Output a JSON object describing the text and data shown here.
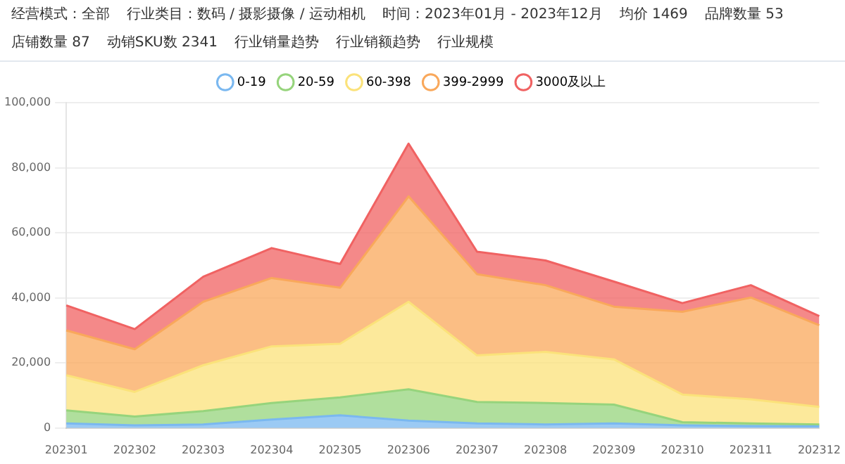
{
  "chart_data": {
    "type": "area",
    "stacked": true,
    "annotations": [
      "经营模式：全部",
      "行业类目：数码 / 摄影摄像 / 运动相机",
      "时间：2023年01月 - 2023年12月",
      "均价 1469",
      "品牌数量 53",
      "店铺数量 87",
      "动销SKU数 2341",
      "行业销量趋势",
      "行业销额趋势",
      "行业规模"
    ],
    "categories": [
      "202301",
      "202302",
      "202303",
      "202304",
      "202305",
      "202306",
      "202307",
      "202308",
      "202309",
      "202310",
      "202311",
      "202312"
    ],
    "series": [
      {
        "name": "0-19",
        "color": "#7ab8f0",
        "values": [
          1400,
          800,
          1100,
          2600,
          3900,
          2300,
          1400,
          1100,
          1400,
          800,
          600,
          500
        ]
      },
      {
        "name": "20-59",
        "color": "#96d47c",
        "values": [
          4000,
          2700,
          4100,
          5100,
          5500,
          9600,
          6600,
          6600,
          5800,
          1000,
          800,
          600
        ]
      },
      {
        "name": "60-398",
        "color": "#fbe27a",
        "values": [
          10800,
          7600,
          14100,
          17400,
          16500,
          26900,
          14300,
          15700,
          13900,
          8500,
          7400,
          5400
        ]
      },
      {
        "name": "399-2999",
        "color": "#f9a85b",
        "values": [
          13800,
          13100,
          19500,
          21000,
          17200,
          32400,
          25000,
          20500,
          16200,
          25400,
          31300,
          25100
        ]
      },
      {
        "name": "3000及以上",
        "color": "#f06262",
        "values": [
          7700,
          6200,
          7700,
          9200,
          7300,
          16200,
          6900,
          7600,
          7700,
          2700,
          3800,
          2800
        ]
      }
    ],
    "ylim": [
      0,
      100000
    ],
    "yticks": [
      {
        "value": 0,
        "label": "0"
      },
      {
        "value": 20000,
        "label": "20,000"
      },
      {
        "value": 40000,
        "label": "40,000"
      },
      {
        "value": 60000,
        "label": "60,000"
      },
      {
        "value": 80000,
        "label": "80,000"
      },
      {
        "value": 100000,
        "label": "100,000"
      }
    ],
    "grid": "y",
    "legend": "top"
  }
}
